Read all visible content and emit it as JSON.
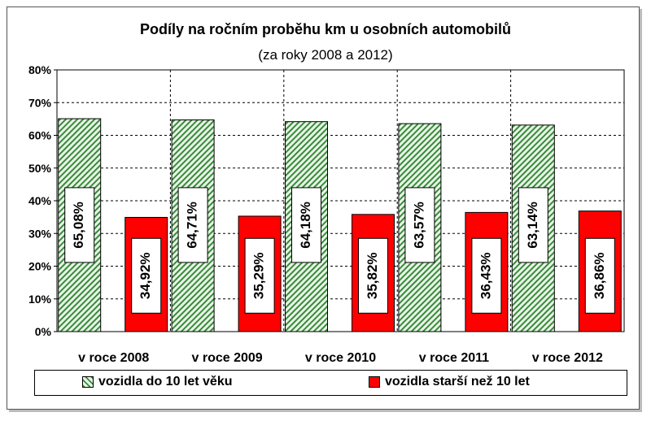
{
  "chart_data": {
    "type": "bar",
    "title": "Podíly na ročním proběhu km u osobních automobilů",
    "subtitle": "(za roky 2008 a 2012)",
    "categories": [
      "v roce 2008",
      "v roce 2009",
      "v roce 2010",
      "v roce 2011",
      "v roce 2012"
    ],
    "series": [
      {
        "name": "vozidla do 10 let věku",
        "values": [
          65.08,
          64.71,
          64.18,
          63.57,
          63.14
        ],
        "labels": [
          "65,08%",
          "64,71%",
          "64,18%",
          "63,57%",
          "63,14%"
        ],
        "color": "#3a8a3a",
        "pattern": "diagonal-hatch"
      },
      {
        "name": "vozidla starší než 10 let",
        "values": [
          34.92,
          35.29,
          35.82,
          36.43,
          36.86
        ],
        "labels": [
          "34,92%",
          "35,29%",
          "35,82%",
          "36,43%",
          "36,86%"
        ],
        "color": "#ff0000"
      }
    ],
    "ylim": [
      0,
      80
    ],
    "yticks": [
      "0%",
      "10%",
      "20%",
      "30%",
      "40%",
      "50%",
      "60%",
      "70%",
      "80%"
    ],
    "grid": true,
    "legend_position": "bottom"
  }
}
